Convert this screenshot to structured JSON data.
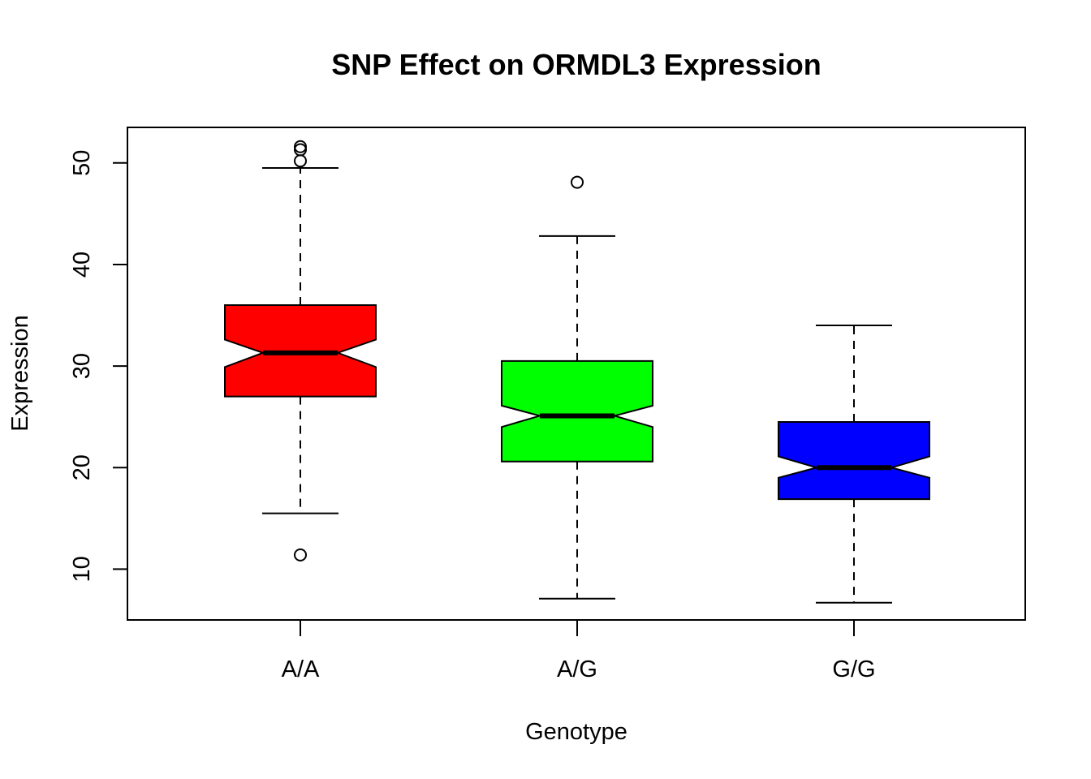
{
  "chart_data": {
    "type": "boxplot",
    "notched": true,
    "title": "SNP Effect on ORMDL3 Expression",
    "xlabel": "Genotype",
    "ylabel": "Expression",
    "ylim": [
      5,
      53.5
    ],
    "yticks": [
      10,
      20,
      30,
      40,
      50
    ],
    "grid": false,
    "categories": [
      "A/A",
      "A/G",
      "G/G"
    ],
    "boxes": [
      {
        "name": "A/A",
        "color": "#ff0000",
        "whisker_low": 15.5,
        "q1": 27.0,
        "median": 31.3,
        "q3": 36.0,
        "whisker_high": 49.5,
        "notch_low": 29.9,
        "notch_high": 32.6,
        "outliers": [
          11.4,
          50.2,
          51.3,
          51.6
        ]
      },
      {
        "name": "A/G",
        "color": "#00ff00",
        "whisker_low": 7.1,
        "q1": 20.6,
        "median": 25.1,
        "q3": 30.5,
        "whisker_high": 42.8,
        "notch_low": 24.0,
        "notch_high": 26.1,
        "outliers": [
          48.1
        ]
      },
      {
        "name": "G/G",
        "color": "#0000ff",
        "whisker_low": 6.7,
        "q1": 16.9,
        "median": 20.0,
        "q3": 24.5,
        "whisker_high": 34.0,
        "notch_low": 19.0,
        "notch_high": 21.1,
        "outliers": []
      }
    ]
  }
}
